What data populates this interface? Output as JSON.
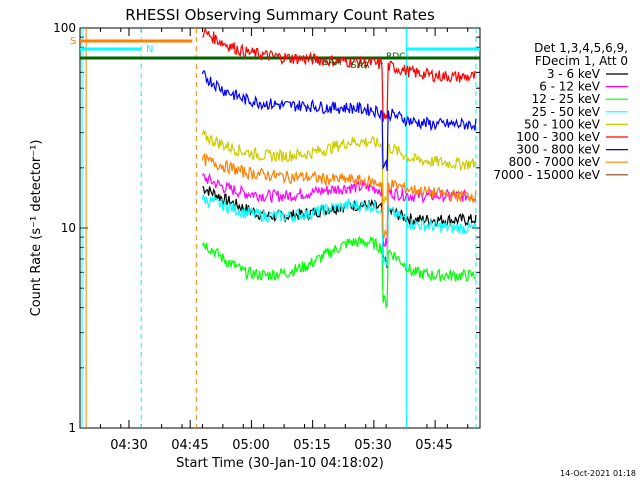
{
  "chart_data": {
    "type": "line",
    "title": "RHESSI Observing Summary Count Rates",
    "xlabel": "Start Time (30-Jan-10 04:18:02)",
    "ylabel": "Count Rate (s⁻¹ detector⁻¹)",
    "yscale": "log",
    "ylim": [
      1,
      100
    ],
    "xlim_minutes_after_0418": [
      0,
      98
    ],
    "xtick_labels": [
      "04:30",
      "04:45",
      "05:00",
      "05:15",
      "05:30",
      "05:45"
    ],
    "xtick_minutes": [
      12,
      27,
      42,
      57,
      72,
      87
    ],
    "ytick_labels": [
      "1",
      "10",
      "100"
    ],
    "ytick_values": [
      1,
      10,
      100
    ],
    "legend_header": [
      "Det 1,3,4,5,6,9,",
      "FDecim 1, Att 0"
    ],
    "series": [
      {
        "name": "3 - 6 keV",
        "color": "#000000",
        "start_min": 30,
        "end_min": 97,
        "values": [
          16,
          14,
          12.5,
          11.5,
          11.5,
          11.8,
          12.5,
          13,
          13,
          12,
          11,
          11,
          11,
          11
        ]
      },
      {
        "name": "6 - 12 keV",
        "color": "#ff00ff",
        "start_min": 30,
        "end_min": 97,
        "values": [
          18,
          16,
          15,
          14.5,
          14.5,
          15,
          15.5,
          16,
          16,
          15,
          14.5,
          14.5,
          14.5,
          14.5
        ]
      },
      {
        "name": "12 - 25 keV",
        "color": "#00ff00",
        "start_min": 30,
        "end_min": 97,
        "values": [
          8.5,
          7,
          6,
          5.8,
          6,
          6.5,
          7.5,
          8.5,
          8.5,
          7.5,
          6,
          5.8,
          5.8,
          5.8
        ]
      },
      {
        "name": "25 - 50 keV",
        "color": "#00ffff",
        "start_min": 30,
        "end_min": 97,
        "values": [
          14,
          13,
          12,
          11.5,
          11.5,
          11.8,
          12.5,
          13,
          13,
          12,
          10.5,
          10.2,
          10,
          10
        ]
      },
      {
        "name": "50 - 100 keV",
        "color": "#cccc00",
        "start_min": 30,
        "end_min": 97,
        "values": [
          29,
          26,
          24,
          23,
          23,
          23.5,
          25,
          27,
          27,
          25,
          22,
          21.5,
          21,
          21
        ]
      },
      {
        "name": "100 - 300 keV",
        "color": "#ff0000",
        "start_min": 30,
        "end_min": 97,
        "values": [
          96,
          84,
          76,
          73,
          71,
          70,
          69,
          68,
          67,
          64,
          60,
          58,
          57,
          57
        ]
      },
      {
        "name": "300 - 800 keV",
        "color": "#0000ff",
        "start_min": 30,
        "end_min": 97,
        "values": [
          58,
          49,
          44,
          42,
          41,
          41,
          40,
          40,
          39,
          37,
          34,
          33,
          33,
          33
        ]
      },
      {
        "name": "800 - 7000 keV",
        "color": "#ff8000",
        "start_min": 30,
        "end_min": 97,
        "values": [
          22,
          20.5,
          19,
          18.5,
          18,
          18,
          17.5,
          17.5,
          17,
          16.5,
          15.5,
          15,
          14.5,
          14.5
        ]
      },
      {
        "name": "7000 - 15000 keV",
        "color": "#8b4513",
        "start_min": 30,
        "end_min": 97,
        "values": []
      }
    ],
    "annotations": [
      {
        "text": "S",
        "color": "#ff8000"
      },
      {
        "text": "N",
        "color": "#00ffff"
      },
      {
        "text": "SAA",
        "color": "#006400"
      },
      {
        "text": "SAA",
        "color": "#006400"
      },
      {
        "text": "R",
        "color": "#ff0000"
      },
      {
        "text": "RDC",
        "color": "#006400"
      }
    ],
    "vertical_markers": [
      {
        "label": "orange solid",
        "minute": 1.5,
        "color": "#ff8000",
        "style": "solid"
      },
      {
        "label": "orange dashed",
        "minute": 28.5,
        "color": "#ff8000",
        "style": "dashed"
      },
      {
        "label": "cyan solid",
        "minute": 0.5,
        "color": "#00ffff",
        "style": "solid"
      },
      {
        "label": "cyan dashed",
        "minute": 15,
        "color": "#00ffff",
        "style": "dashed"
      },
      {
        "label": "cyan solid",
        "minute": 80,
        "color": "#00ffff",
        "style": "solid"
      },
      {
        "label": "cyan dashed",
        "minute": 97,
        "color": "#00ffff",
        "style": "dashed"
      }
    ],
    "footer_timestamp": "14-Oct-2021 01:18"
  }
}
